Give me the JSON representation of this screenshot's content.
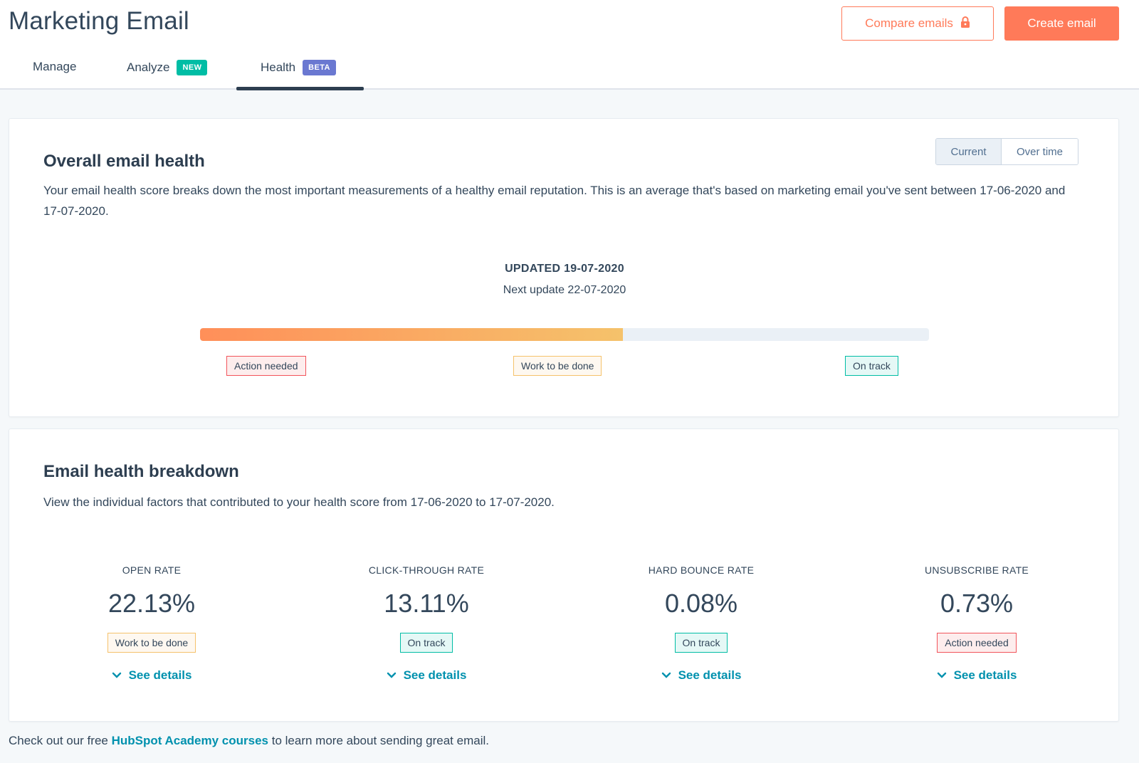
{
  "header": {
    "title": "Marketing Email",
    "compare_label": "Compare emails",
    "create_label": "Create email",
    "accent": "#ff7a59"
  },
  "tabs": [
    {
      "label": "Manage"
    },
    {
      "label": "Analyze",
      "badge": "NEW",
      "badge_color": "#00bda5"
    },
    {
      "label": "Health",
      "badge": "BETA",
      "badge_color": "#6a78d1",
      "active": true
    }
  ],
  "overall": {
    "title": "Overall email health",
    "description": "Your email health score breaks down the most important measurements of a healthy email reputation. This is an average that's based on marketing email you've sent between 17-06-2020 and 17-07-2020.",
    "toggle": {
      "current": "Current",
      "over_time": "Over time",
      "selected": "Current"
    },
    "updated": "UPDATED 19-07-2020",
    "next_update": "Next update 22-07-2020",
    "score_fraction": 0.58,
    "scale": {
      "action": "Action needed",
      "work": "Work to be done",
      "ontrack": "On track"
    }
  },
  "breakdown": {
    "title": "Email health breakdown",
    "description": "View the individual factors that contributed to your health score from 17-06-2020 to 17-07-2020.",
    "metrics": [
      {
        "label": "OPEN RATE",
        "value": "22.13%",
        "status": "Work to be done",
        "details": "See details"
      },
      {
        "label": "CLICK-THROUGH RATE",
        "value": "13.11%",
        "status": "On track",
        "details": "See details"
      },
      {
        "label": "HARD BOUNCE RATE",
        "value": "0.08%",
        "status": "On track",
        "details": "See details"
      },
      {
        "label": "UNSUBSCRIBE RATE",
        "value": "0.73%",
        "status": "Action needed",
        "details": "See details"
      }
    ]
  },
  "footer": {
    "pre": "Check out our free ",
    "link": "HubSpot Academy courses",
    "post": " to learn more about sending great email."
  }
}
